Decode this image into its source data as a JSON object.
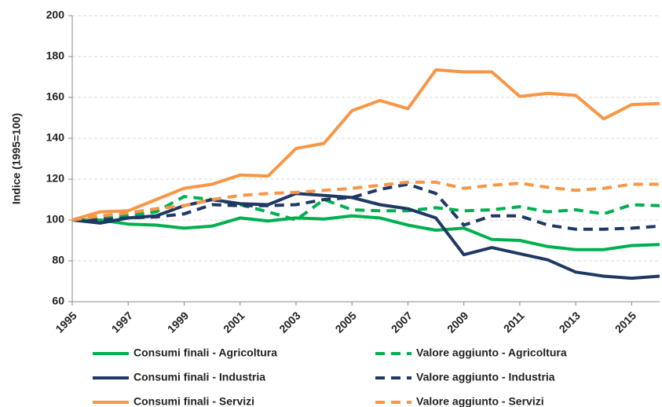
{
  "chart_data": {
    "type": "line",
    "y_label": "Indice (1995=100)",
    "x": [
      1995,
      1996,
      1997,
      1998,
      1999,
      2000,
      2001,
      2002,
      2003,
      2004,
      2005,
      2006,
      2007,
      2008,
      2009,
      2010,
      2011,
      2012,
      2013,
      2014,
      2015,
      2016
    ],
    "xlim": [
      1995,
      2016
    ],
    "xticks": [
      1995,
      1997,
      1999,
      2001,
      2003,
      2005,
      2007,
      2009,
      2011,
      2013,
      2015
    ],
    "ylim": [
      60,
      200
    ],
    "yticks": [
      60,
      80,
      100,
      120,
      140,
      160,
      180,
      200
    ],
    "grid": true,
    "legend": "bottom",
    "series": [
      {
        "name": "Consumi finali - Agricoltura",
        "color": "#00b050",
        "dashed": false,
        "values": [
          100,
          100,
          98,
          97.5,
          96,
          97,
          101,
          99.5,
          101,
          100.5,
          102,
          101,
          97.5,
          95,
          96,
          90.5,
          90,
          87,
          85.5,
          85.5,
          87.5,
          88
        ]
      },
      {
        "name": "Valore aggiunto - Agricoltura",
        "color": "#00b050",
        "dashed": true,
        "values": [
          100,
          101,
          102,
          104,
          111.5,
          110,
          107.5,
          104,
          100,
          110,
          105,
          104.5,
          104.5,
          106,
          104.5,
          105,
          106.5,
          104,
          105,
          103,
          107.5,
          107
        ]
      },
      {
        "name": "Consumi finali - Industria",
        "color": "#1f3864",
        "dashed": false,
        "values": [
          100,
          98.5,
          101,
          102,
          107,
          110,
          108,
          107.5,
          113,
          112,
          111,
          107.5,
          105.5,
          101,
          83,
          86.5,
          83.5,
          80.5,
          74.5,
          72.5,
          71.5,
          72.5
        ]
      },
      {
        "name": "Valore aggiunto - Industria",
        "color": "#1f3864",
        "dashed": true,
        "values": [
          100,
          100,
          101,
          101.5,
          103,
          107.5,
          107,
          107,
          107.5,
          110,
          111,
          115,
          117.5,
          113,
          97.5,
          102,
          102,
          97.5,
          95.5,
          95.5,
          96,
          97
        ]
      },
      {
        "name": "Consumi finali - Servizi",
        "color": "#f79646",
        "dashed": false,
        "values": [
          100,
          104,
          104.5,
          110,
          115.5,
          117.5,
          122,
          121.5,
          135,
          137.5,
          153.5,
          158.5,
          154.5,
          173.5,
          172.5,
          172.5,
          160.5,
          162,
          161,
          149.5,
          156.5,
          157
        ]
      },
      {
        "name": "Valore aggiunto - Servizi",
        "color": "#f79646",
        "dashed": true,
        "values": [
          100,
          102,
          103.5,
          105.5,
          107,
          110,
          112,
          113,
          113.5,
          114.5,
          115.5,
          117,
          118.5,
          118.5,
          115.5,
          117,
          118,
          116,
          114.5,
          115.5,
          117.5,
          117.5
        ]
      }
    ]
  }
}
